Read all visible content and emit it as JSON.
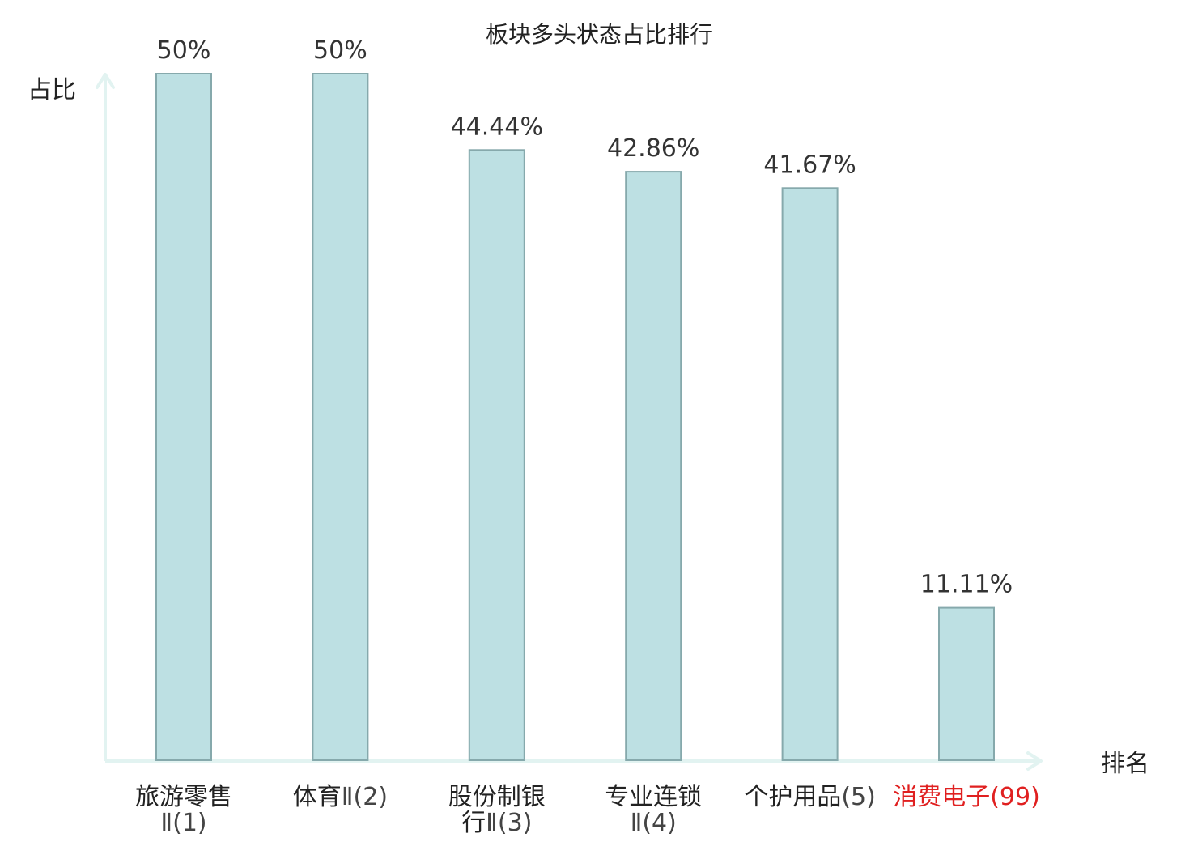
{
  "chart_data": {
    "type": "bar",
    "title": "板块多头状态占比排行",
    "ylabel": "占比",
    "xlabel": "排名",
    "ylim": [
      0,
      50
    ],
    "grid": false,
    "categories": [
      {
        "lines": [
          {
            "name": "旅游零售",
            "rank": ""
          },
          {
            "name": "",
            "rank": "Ⅱ(1)"
          }
        ],
        "highlight": false
      },
      {
        "lines": [
          {
            "name": "体育",
            "rank": "Ⅱ(2)"
          }
        ],
        "highlight": false
      },
      {
        "lines": [
          {
            "name": "股份制银",
            "rank": ""
          },
          {
            "name": "行",
            "rank": "Ⅱ(3)"
          }
        ],
        "highlight": false
      },
      {
        "lines": [
          {
            "name": "专业连锁",
            "rank": ""
          },
          {
            "name": "",
            "rank": "Ⅱ(4)"
          }
        ],
        "highlight": false
      },
      {
        "lines": [
          {
            "name": "个护用品",
            "rank": "(5)"
          }
        ],
        "highlight": false
      },
      {
        "lines": [
          {
            "name": "消费电子",
            "rank": "(99)"
          }
        ],
        "highlight": true
      }
    ],
    "values": [
      50,
      50,
      44.44,
      42.86,
      41.67,
      11.11
    ],
    "value_labels": [
      "50%",
      "50%",
      "44.44%",
      "42.86%",
      "41.67%",
      "11.11%"
    ],
    "colors": {
      "bar_fill": "#bde0e3",
      "bar_stroke": "#86a9ac",
      "axis": "#e2f3f1",
      "text": "#222222",
      "rank_text": "#444444",
      "highlight": "#e02020"
    }
  }
}
